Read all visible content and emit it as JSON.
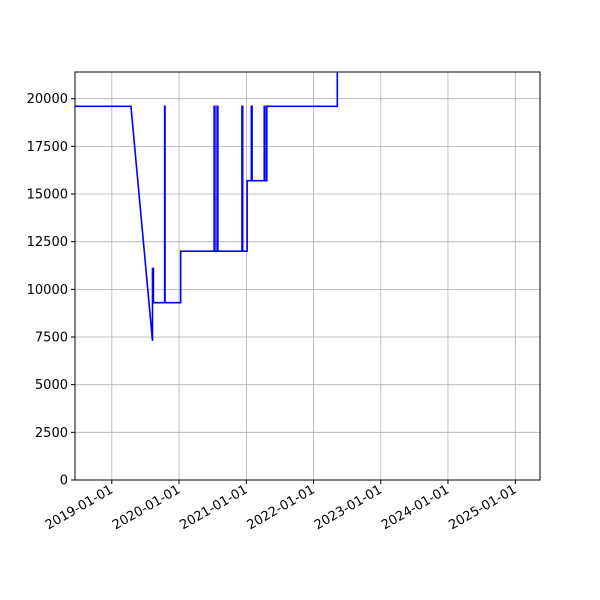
{
  "chart_data": {
    "type": "line",
    "title": "",
    "xlabel": "",
    "ylabel": "",
    "x_axis": {
      "kind": "date",
      "range": [
        "2018-06-15",
        "2025-05-15"
      ],
      "ticks": [
        "2019-01-01",
        "2020-01-01",
        "2021-01-01",
        "2022-01-01",
        "2023-01-01",
        "2024-01-01",
        "2025-01-01"
      ]
    },
    "y_axis": {
      "range": [
        0,
        21400
      ],
      "ticks": [
        0,
        2500,
        5000,
        7500,
        10000,
        12500,
        15000,
        17500,
        20000
      ]
    },
    "grid": true,
    "series": [
      {
        "color": "#0000ff",
        "points": [
          [
            "2018-06-15",
            19600
          ],
          [
            "2019-04-15",
            19600
          ],
          [
            "2019-08-10",
            7300
          ],
          [
            "2019-08-10",
            11100
          ],
          [
            "2019-08-15",
            11100
          ],
          [
            "2019-08-15",
            9300
          ],
          [
            "2019-10-15",
            9300
          ],
          [
            "2019-10-15",
            19600
          ],
          [
            "2019-10-17",
            19600
          ],
          [
            "2019-10-17",
            9300
          ],
          [
            "2020-01-10",
            9300
          ],
          [
            "2020-01-10",
            12000
          ],
          [
            "2020-07-10",
            12000
          ],
          [
            "2020-07-10",
            19600
          ],
          [
            "2020-07-14",
            19600
          ],
          [
            "2020-07-14",
            12000
          ],
          [
            "2020-07-26",
            12000
          ],
          [
            "2020-07-26",
            19600
          ],
          [
            "2020-07-30",
            19600
          ],
          [
            "2020-07-30",
            12000
          ],
          [
            "2020-12-08",
            12000
          ],
          [
            "2020-12-08",
            19600
          ],
          [
            "2020-12-12",
            19600
          ],
          [
            "2020-12-12",
            12000
          ],
          [
            "2021-01-05",
            12000
          ],
          [
            "2021-01-05",
            15700
          ],
          [
            "2021-01-28",
            15700
          ],
          [
            "2021-01-28",
            19600
          ],
          [
            "2021-02-01",
            19600
          ],
          [
            "2021-02-01",
            15700
          ],
          [
            "2021-04-08",
            15700
          ],
          [
            "2021-04-08",
            19600
          ],
          [
            "2021-04-12",
            19600
          ],
          [
            "2021-04-12",
            15700
          ],
          [
            "2021-04-22",
            15700
          ],
          [
            "2021-04-22",
            19600
          ],
          [
            "2022-05-10",
            19600
          ],
          [
            "2022-05-10",
            21400
          ]
        ]
      }
    ]
  }
}
